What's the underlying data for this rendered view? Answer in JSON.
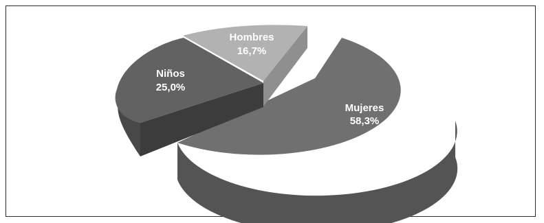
{
  "chart_data": {
    "type": "pie",
    "style": "3d-exploded",
    "slices": [
      {
        "label": "Mujeres",
        "value": 58.3,
        "display": "58,3%",
        "color": "#6e6e6e"
      },
      {
        "label": "Niños",
        "value": 25.0,
        "display": "25,0%",
        "color": "#5f5f5f"
      },
      {
        "label": "Hombres",
        "value": 16.7,
        "display": "16,7%",
        "color": "#a9a9a9"
      }
    ]
  }
}
